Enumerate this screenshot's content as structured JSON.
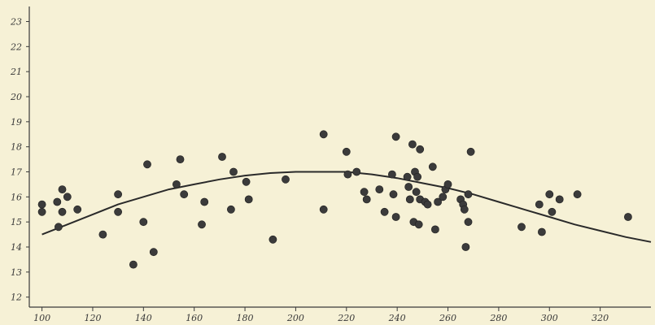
{
  "colors": {
    "background": "#f6f1d6",
    "ink": "#3a3a3a",
    "dot": "#3b3b3b"
  },
  "chart_data": {
    "type": "scatter",
    "title": "",
    "xlabel": "",
    "ylabel": "",
    "grid": false,
    "xlim": [
      95,
      340
    ],
    "ylim": [
      11.6,
      23.6
    ],
    "x_ticks": [
      100,
      120,
      140,
      160,
      180,
      200,
      220,
      240,
      260,
      280,
      300,
      320
    ],
    "y_ticks": [
      12,
      13,
      14,
      15,
      16,
      17,
      18,
      19,
      20,
      21,
      22,
      23
    ],
    "series": [
      {
        "kind": "points",
        "points": [
          [
            100,
            15.7
          ],
          [
            100,
            15.4
          ],
          [
            106,
            15.8
          ],
          [
            106.5,
            14.8
          ],
          [
            108,
            16.3
          ],
          [
            108,
            15.4
          ],
          [
            110,
            16.0
          ],
          [
            114,
            15.5
          ],
          [
            124,
            14.5
          ],
          [
            130,
            16.1
          ],
          [
            130,
            15.4
          ],
          [
            136,
            13.3
          ],
          [
            140,
            15.0
          ],
          [
            141.5,
            17.3
          ],
          [
            144,
            13.8
          ],
          [
            153,
            16.5
          ],
          [
            154.5,
            17.5
          ],
          [
            156,
            16.1
          ],
          [
            163,
            14.9
          ],
          [
            164,
            15.8
          ],
          [
            171,
            17.6
          ],
          [
            174.5,
            15.5
          ],
          [
            175.5,
            17.0
          ],
          [
            180.5,
            16.6
          ],
          [
            181.5,
            15.9
          ],
          [
            191,
            14.3
          ],
          [
            196,
            16.7
          ],
          [
            211,
            18.5
          ],
          [
            211,
            15.5
          ],
          [
            220,
            17.8
          ],
          [
            220.5,
            16.9
          ],
          [
            224,
            17.0
          ],
          [
            227,
            16.2
          ],
          [
            228,
            15.9
          ],
          [
            233,
            16.3
          ],
          [
            235,
            15.4
          ],
          [
            238,
            16.9
          ],
          [
            238.5,
            16.1
          ],
          [
            239.5,
            18.4
          ],
          [
            239.5,
            15.2
          ],
          [
            244,
            16.8
          ],
          [
            244.5,
            16.4
          ],
          [
            245,
            15.9
          ],
          [
            246,
            18.1
          ],
          [
            246.5,
            15.0
          ],
          [
            247,
            17.0
          ],
          [
            247.5,
            16.2
          ],
          [
            248,
            16.8
          ],
          [
            248.5,
            14.9
          ],
          [
            249,
            17.9
          ],
          [
            249,
            15.9
          ],
          [
            251,
            15.8
          ],
          [
            252,
            15.7
          ],
          [
            254,
            17.2
          ],
          [
            255,
            14.7
          ],
          [
            256,
            15.8
          ],
          [
            258,
            16.0
          ],
          [
            259,
            16.3
          ],
          [
            260,
            16.5
          ],
          [
            265,
            15.9
          ],
          [
            266,
            15.7
          ],
          [
            266.5,
            15.5
          ],
          [
            267,
            14.0
          ],
          [
            268,
            16.1
          ],
          [
            268,
            15.0
          ],
          [
            269,
            17.8
          ],
          [
            289,
            14.8
          ],
          [
            296,
            15.7
          ],
          [
            297,
            14.6
          ],
          [
            300,
            16.1
          ],
          [
            301,
            15.4
          ],
          [
            304,
            15.9
          ],
          [
            311,
            16.1
          ],
          [
            331,
            15.2
          ]
        ]
      },
      {
        "kind": "curve",
        "points": [
          [
            100,
            14.5
          ],
          [
            110,
            14.9
          ],
          [
            120,
            15.3
          ],
          [
            130,
            15.7
          ],
          [
            140,
            16.0
          ],
          [
            150,
            16.3
          ],
          [
            160,
            16.5
          ],
          [
            170,
            16.7
          ],
          [
            180,
            16.85
          ],
          [
            190,
            16.95
          ],
          [
            200,
            17.0
          ],
          [
            210,
            17.0
          ],
          [
            220,
            17.0
          ],
          [
            230,
            16.9
          ],
          [
            240,
            16.75
          ],
          [
            250,
            16.55
          ],
          [
            260,
            16.35
          ],
          [
            270,
            16.1
          ],
          [
            280,
            15.8
          ],
          [
            290,
            15.5
          ],
          [
            300,
            15.2
          ],
          [
            310,
            14.9
          ],
          [
            320,
            14.65
          ],
          [
            330,
            14.4
          ],
          [
            340,
            14.2
          ]
        ]
      }
    ]
  }
}
